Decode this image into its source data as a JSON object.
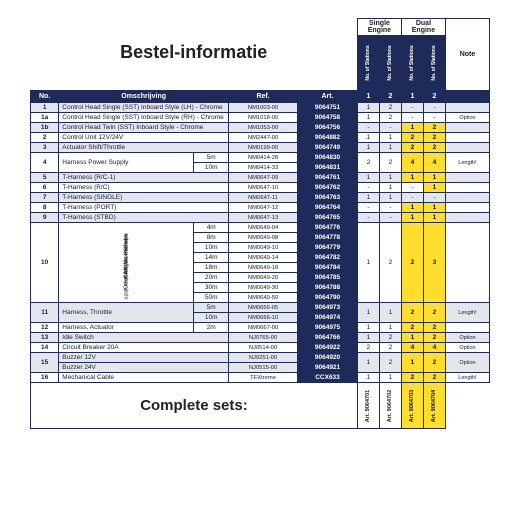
{
  "title": "Bestel-informatie",
  "eng": {
    "single": "Single Engine",
    "dual": "Dual Engine",
    "note": "Note",
    "stations": "No. of Stations"
  },
  "cols": {
    "no": "No.",
    "desc": "Omschrijving",
    "ref": "Ref.",
    "art": "Art.",
    "c1": "1",
    "c2": "2"
  },
  "complete": "Complete sets:",
  "foot": [
    "Art. 9064701",
    "Art. 9064702",
    "Art. 9064703",
    "Art. 9064704"
  ],
  "can": {
    "a": "CANbus Harness",
    "b": "(Other lengths available",
    "c": "upon request. Max. 80m)"
  },
  "rows": [
    {
      "no": "1",
      "desc": "Control Head Single (SST) Inboard Style (LH) - Chrome",
      "ref": "NM1003-00",
      "art": "9064751",
      "s": [
        "1",
        "2",
        "",
        "-",
        "-",
        ""
      ],
      "z": 1
    },
    {
      "no": "1a",
      "desc": "Control Head Single (SST) Inboard Style (RH) - Chrome",
      "ref": "NM1018-00",
      "art": "9064758",
      "s": [
        "1",
        "2",
        "",
        "-",
        "-",
        "Option"
      ],
      "z": 0
    },
    {
      "no": "1b",
      "desc": "Control Head Twin (SST) Inboard Style - Chrome",
      "ref": "NM1053-00",
      "art": "9064756",
      "s": [
        "-",
        "-",
        "",
        "1",
        "2",
        ""
      ],
      "hl": [
        3,
        4
      ],
      "z": 1
    },
    {
      "no": "2",
      "desc": "Control Unit 12V/24V",
      "ref": "NM2447-00",
      "art": "9064882",
      "s": [
        "1",
        "1",
        "",
        "2",
        "2",
        ""
      ],
      "hl": [
        3,
        4
      ],
      "z": 0
    },
    {
      "no": "3",
      "desc": "Actuator Shift/Throttle",
      "ref": "NM0199-00",
      "art": "9064749",
      "s": [
        "1",
        "1",
        "",
        "2",
        "2",
        ""
      ],
      "hl": [
        3,
        4
      ],
      "z": 1
    },
    {
      "no": "4",
      "desc": "Harness Power Supply",
      "sub": "5m",
      "ref": "NM0414-28",
      "art": "9064830",
      "s": [
        "2",
        "2",
        "",
        "4",
        "4",
        "Length!"
      ],
      "hl": [
        3,
        4
      ],
      "z": 0,
      "span": 2
    },
    {
      "sub": "10m",
      "ref": "NM0414-33",
      "art": "9064831",
      "z": 0,
      "cont": 1
    },
    {
      "no": "5",
      "desc": "T-Harness (R/C-1)",
      "ref": "NM0647-09",
      "art": "9064761",
      "s": [
        "1",
        "1",
        "",
        "1",
        "1",
        ""
      ],
      "hl": [
        3,
        4
      ],
      "z": 1
    },
    {
      "no": "6",
      "desc": "T-Harness (R/C)",
      "ref": "NM0647-10",
      "art": "9064762",
      "s": [
        "-",
        "1",
        "",
        "-",
        "1",
        ""
      ],
      "hl": [
        4
      ],
      "z": 0
    },
    {
      "no": "7",
      "desc": "T-Harness (SINGLE)",
      "ref": "NM0647-11",
      "art": "9064763",
      "s": [
        "1",
        "1",
        "",
        "-",
        "-",
        ""
      ],
      "z": 1
    },
    {
      "no": "8",
      "desc": "T-Harness (PORT)",
      "ref": "NM0647-12",
      "art": "9064764",
      "s": [
        "-",
        "-",
        "",
        "1",
        "1",
        ""
      ],
      "hl": [
        3,
        4
      ],
      "z": 0
    },
    {
      "no": "9",
      "desc": "T-Harness (STBD)",
      "ref": "NM0647-13",
      "art": "9064765",
      "s": [
        "-",
        "-",
        "",
        "1",
        "1",
        ""
      ],
      "hl": [
        3,
        4
      ],
      "z": 1
    },
    {
      "no": "10",
      "can": 1,
      "sub": "4m",
      "ref": "NM0649-04",
      "art": "9064776",
      "s": [
        "1",
        "2",
        "",
        "2",
        "3",
        ""
      ],
      "hl": [
        3,
        4
      ],
      "z": 0,
      "span": 8
    },
    {
      "sub": "8m",
      "ref": "NM0649-08",
      "art": "9064778",
      "z": 0,
      "cont": 1
    },
    {
      "sub": "10m",
      "ref": "NM0649-10",
      "art": "9064779",
      "z": 0,
      "cont": 1
    },
    {
      "sub": "14m",
      "ref": "NM0649-14",
      "art": "9064782",
      "z": 0,
      "cont": 1
    },
    {
      "sub": "18m",
      "ref": "NM0649-18",
      "art": "9064784",
      "z": 0,
      "cont": 1
    },
    {
      "sub": "20m",
      "ref": "NM0649-20",
      "art": "9064785",
      "z": 0,
      "cont": 1
    },
    {
      "sub": "30m",
      "ref": "NM0649-30",
      "art": "9064788",
      "z": 0,
      "cont": 1
    },
    {
      "sub": "50m",
      "ref": "NM0649-50",
      "art": "9064790",
      "z": 0,
      "cont": 1
    },
    {
      "no": "11",
      "desc": "Harness, Throttle",
      "sub": "5m",
      "ref": "NM0666-05",
      "art": "9064973",
      "s": [
        "1",
        "1",
        "",
        "2",
        "2",
        "Length!"
      ],
      "hl": [
        3,
        4
      ],
      "z": 1,
      "span": 2
    },
    {
      "sub": "10m",
      "ref": "NM0666-10",
      "art": "9064974",
      "z": 1,
      "cont": 1
    },
    {
      "no": "12",
      "desc": "Harness, Actuator",
      "sub": "2m",
      "ref": "NM0667-00",
      "art": "9064975",
      "s": [
        "1",
        "1",
        "",
        "2",
        "2",
        ""
      ],
      "hl": [
        3,
        4
      ],
      "z": 0
    },
    {
      "no": "13",
      "desc": "Idle Switch",
      "ref": "NJ0765-00",
      "art": "9064766",
      "s": [
        "1",
        "2",
        "",
        "1",
        "2",
        "Option"
      ],
      "hl": [
        3,
        4
      ],
      "z": 1
    },
    {
      "no": "14",
      "desc": "Circuit Breaker 20A",
      "ref": "NJ0514-00",
      "art": "9064922",
      "s": [
        "2",
        "2",
        "",
        "4",
        "4",
        "Option"
      ],
      "hl": [
        3,
        4
      ],
      "z": 0
    },
    {
      "no": "15",
      "desc": "Buzzer 12V",
      "ref": "NJ0251-00",
      "art": "9064920",
      "s": [
        "1",
        "2",
        "",
        "1",
        "2",
        "Option"
      ],
      "hl": [
        3,
        4
      ],
      "z": 1,
      "span": 2,
      "desc2": "Buzzer 24V",
      "ref2": "NJ0515-00",
      "art2": "9064921"
    },
    {
      "desc": "Buzzer 24V",
      "ref": "NJ0515-00",
      "art": "9064921",
      "z": 1,
      "cont": 1,
      "d": 1
    },
    {
      "no": "16",
      "desc": "Mechanical Cable",
      "ref": "TFXtreme",
      "art": "CCX633",
      "s": [
        "1",
        "1",
        "",
        "2",
        "2",
        "Length!"
      ],
      "hl": [
        3,
        4
      ],
      "z": 0
    }
  ]
}
